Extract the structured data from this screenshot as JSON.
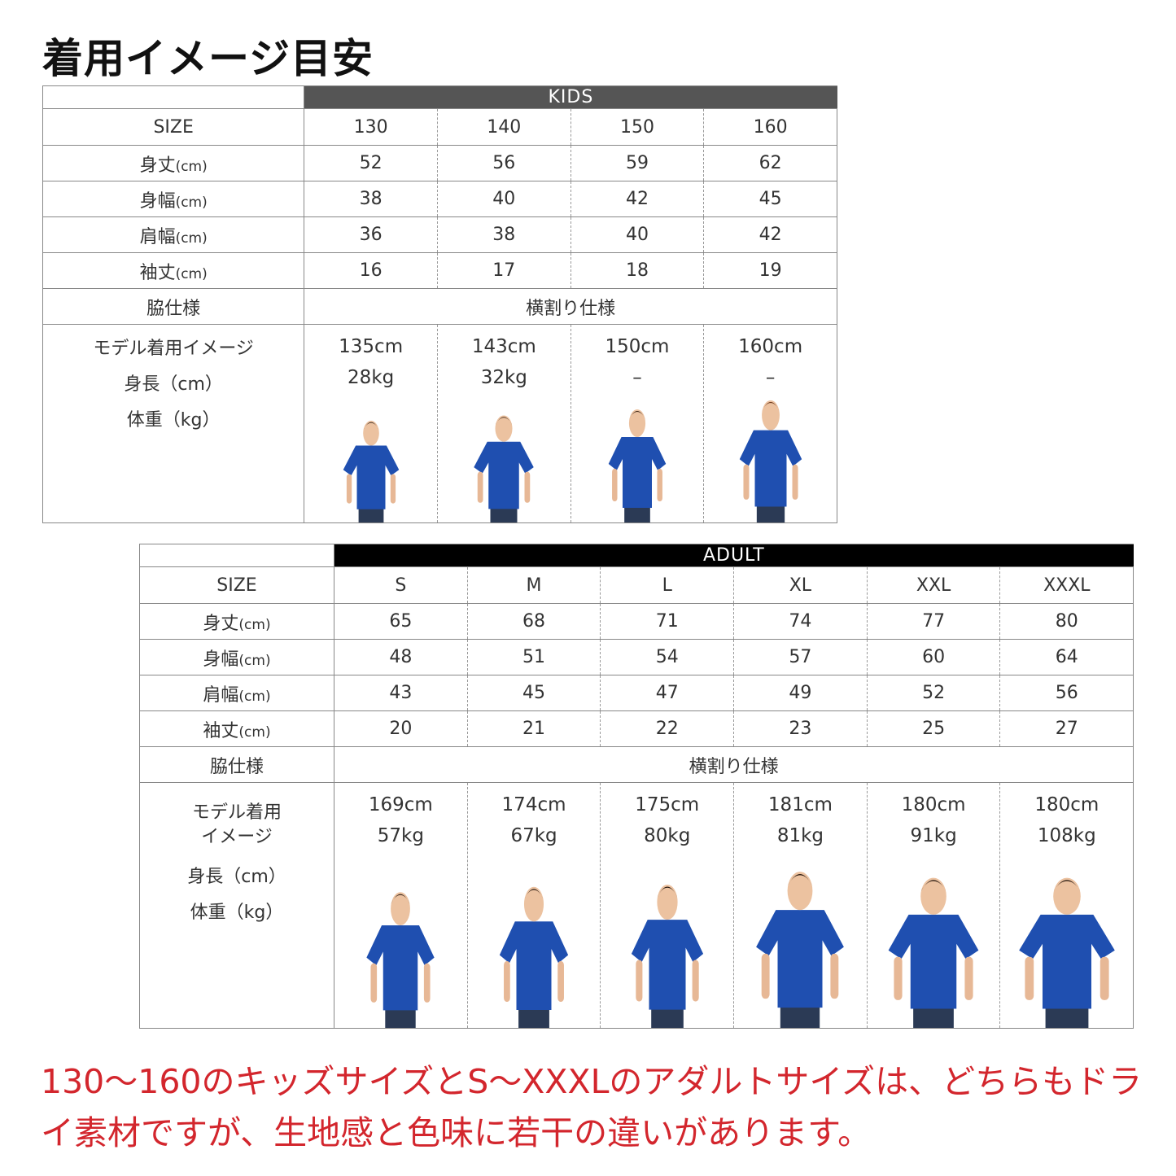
{
  "title": "着用イメージ目安",
  "colors": {
    "kids_band": "#555555",
    "adult_band": "#000000",
    "shirt": "#1f4fb0",
    "note": "#d3262d"
  },
  "row_labels": {
    "size": "SIZE",
    "length": "身丈",
    "width": "身幅",
    "shoulder": "肩幅",
    "sleeve": "袖丈",
    "unit": "(cm)",
    "side": "脇仕様",
    "model_line1": "モデル着用イメージ",
    "model_line1a": "モデル着用",
    "model_line1b": "イメージ",
    "height": "身長（cm）",
    "weight": "体重（kg）"
  },
  "kids": {
    "band": "KIDS",
    "sizes": [
      "130",
      "140",
      "150",
      "160"
    ],
    "length": [
      "52",
      "56",
      "59",
      "62"
    ],
    "width": [
      "38",
      "40",
      "42",
      "45"
    ],
    "shoulder": [
      "36",
      "38",
      "40",
      "42"
    ],
    "sleeve": [
      "16",
      "17",
      "18",
      "19"
    ],
    "side": "横割り仕様",
    "models": [
      {
        "height": "135cm",
        "weight": "28kg"
      },
      {
        "height": "143cm",
        "weight": "32kg"
      },
      {
        "height": "150cm",
        "weight": "–"
      },
      {
        "height": "160cm",
        "weight": "–"
      }
    ]
  },
  "adult": {
    "band": "ADULT",
    "sizes": [
      "S",
      "M",
      "L",
      "XL",
      "XXL",
      "XXXL"
    ],
    "length": [
      "65",
      "68",
      "71",
      "74",
      "77",
      "80"
    ],
    "width": [
      "48",
      "51",
      "54",
      "57",
      "60",
      "64"
    ],
    "shoulder": [
      "43",
      "45",
      "47",
      "49",
      "52",
      "56"
    ],
    "sleeve": [
      "20",
      "21",
      "22",
      "23",
      "25",
      "27"
    ],
    "side": "横割り仕様",
    "models": [
      {
        "height": "169cm",
        "weight": "57kg"
      },
      {
        "height": "174cm",
        "weight": "67kg"
      },
      {
        "height": "175cm",
        "weight": "80kg"
      },
      {
        "height": "181cm",
        "weight": "81kg"
      },
      {
        "height": "180cm",
        "weight": "91kg"
      },
      {
        "height": "180cm",
        "weight": "108kg"
      }
    ]
  },
  "note": "130〜160のキッズサイズとS〜XXXLのアダルトサイズは、どちらもドライ素材ですが、生地感と色味に若干の違いがあります。"
}
